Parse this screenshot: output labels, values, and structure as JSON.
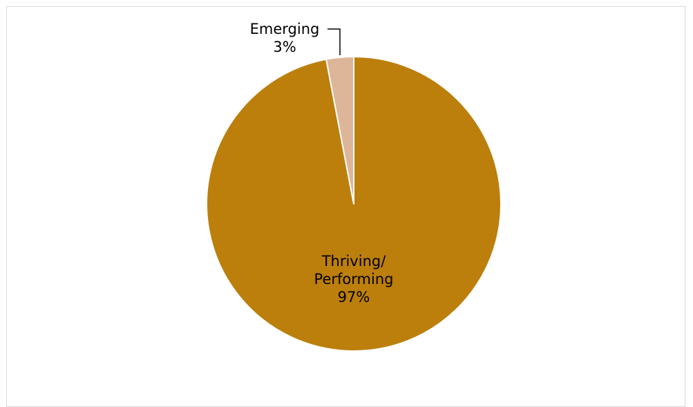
{
  "chart_data": {
    "type": "pie",
    "title": "",
    "categories": [
      "Thriving/ Performing",
      "Emerging"
    ],
    "values": [
      97,
      3
    ],
    "slices": [
      {
        "name": "Thriving/ Performing",
        "label_lines": [
          "Thriving/",
          "Performing"
        ],
        "percent_label": "97%",
        "value": 97,
        "color": "#bc7f0c"
      },
      {
        "name": "Emerging",
        "label_lines": [
          "Emerging"
        ],
        "percent_label": "3%",
        "value": 3,
        "color": "#ddb598"
      }
    ],
    "start_angle_deg": 0,
    "direction": "clockwise",
    "slice_border_color": "#ffffff",
    "legend": "none"
  }
}
